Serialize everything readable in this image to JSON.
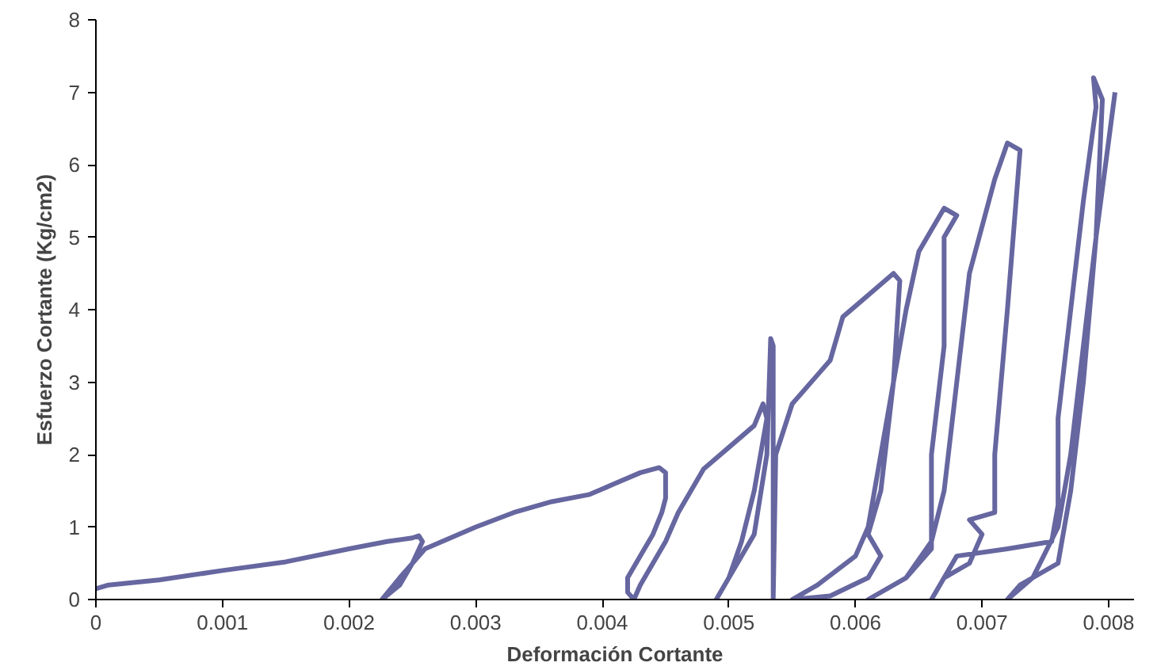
{
  "chart_data": {
    "type": "line",
    "xlabel": "Deformación Cortante",
    "ylabel": "Esfuerzo Cortante (Kg/cm2)",
    "xlim": [
      0,
      0.0082
    ],
    "ylim": [
      0,
      8
    ],
    "xticks": [
      0,
      0.001,
      0.002,
      0.003,
      0.004,
      0.005,
      0.006,
      0.007,
      0.008
    ],
    "yticks": [
      0,
      1,
      2,
      3,
      4,
      5,
      6,
      7,
      8
    ],
    "grid": false,
    "marker": "none",
    "line_style": "solid",
    "series": [
      {
        "color": "#6666a0",
        "x": [
          0,
          0.0001,
          0.0005,
          0.001,
          0.0015,
          0.002,
          0.0023,
          0.0025,
          0.00255,
          0.00258,
          0.0025,
          0.0024,
          0.00226,
          0.0024,
          0.0026,
          0.0028,
          0.003,
          0.0033,
          0.0036,
          0.0039,
          0.0041,
          0.0043,
          0.00445,
          0.0045,
          0.0045,
          0.00447,
          0.0044,
          0.0043,
          0.0042,
          0.0042,
          0.00425,
          0.0043,
          0.0044,
          0.0045,
          0.0046,
          0.0047,
          0.0048,
          0.005,
          0.0052,
          0.00527,
          0.0053,
          0.0052,
          0.0051,
          0.005,
          0.0049,
          0.005,
          0.0052,
          0.0053,
          0.00533,
          0.00535,
          0.00535,
          0.00535,
          0.00537,
          0.0055,
          0.0057,
          0.0058,
          0.0059,
          0.0061,
          0.0063,
          0.00635,
          0.0063,
          0.0062,
          0.0061,
          0.0062,
          0.0061,
          0.0058,
          0.0055,
          0.0057,
          0.006,
          0.0061,
          0.0062,
          0.0063,
          0.0064,
          0.0065,
          0.0066,
          0.0067,
          0.0068,
          0.0067,
          0.0067,
          0.0066,
          0.0066,
          0.0066,
          0.0064,
          0.0061,
          0.0064,
          0.0066,
          0.0067,
          0.0068,
          0.0069,
          0.0071,
          0.0072,
          0.0073,
          0.0072,
          0.0071,
          0.0071,
          0.0069,
          0.007,
          0.0069,
          0.0067,
          0.0066,
          0.0068,
          0.0072,
          0.00755,
          0.0076,
          0.0076,
          0.0077,
          0.0078,
          0.0079,
          0.00788,
          0.00795,
          0.0079,
          0.0078,
          0.0077,
          0.00765,
          0.0076,
          0.0073,
          0.0072,
          0.0074,
          0.0076,
          0.0077,
          0.0078,
          0.0079,
          0.00805
        ],
        "values": [
          0.15,
          0.2,
          0.27,
          0.4,
          0.52,
          0.7,
          0.8,
          0.85,
          0.88,
          0.8,
          0.5,
          0.2,
          0.0,
          0.3,
          0.7,
          0.85,
          1.0,
          1.2,
          1.35,
          1.45,
          1.6,
          1.75,
          1.82,
          1.75,
          1.4,
          1.2,
          0.9,
          0.6,
          0.3,
          0.1,
          0.0,
          0.2,
          0.5,
          0.8,
          1.2,
          1.5,
          1.8,
          2.1,
          2.4,
          2.7,
          2.5,
          1.5,
          0.8,
          0.3,
          0.0,
          0.3,
          0.9,
          2.0,
          3.6,
          3.5,
          1.0,
          0.0,
          2.0,
          2.7,
          3.1,
          3.3,
          3.9,
          4.2,
          4.5,
          4.4,
          3.0,
          1.5,
          0.9,
          0.6,
          0.3,
          0.05,
          0.0,
          0.2,
          0.6,
          1.0,
          2.0,
          3.0,
          4.0,
          4.8,
          5.1,
          5.4,
          5.3,
          5.0,
          3.5,
          2.0,
          1.0,
          0.7,
          0.3,
          0.0,
          0.3,
          0.8,
          1.5,
          3.0,
          4.5,
          5.8,
          6.3,
          6.2,
          4.0,
          2.0,
          1.2,
          1.1,
          0.9,
          0.5,
          0.3,
          0.0,
          0.6,
          0.7,
          0.8,
          1.3,
          2.5,
          4.0,
          5.5,
          6.8,
          7.2,
          6.9,
          5.0,
          3.0,
          1.5,
          1.0,
          0.5,
          0.2,
          0.0,
          0.3,
          1.0,
          2.0,
          3.5,
          5.0,
          7.0
        ]
      }
    ]
  }
}
